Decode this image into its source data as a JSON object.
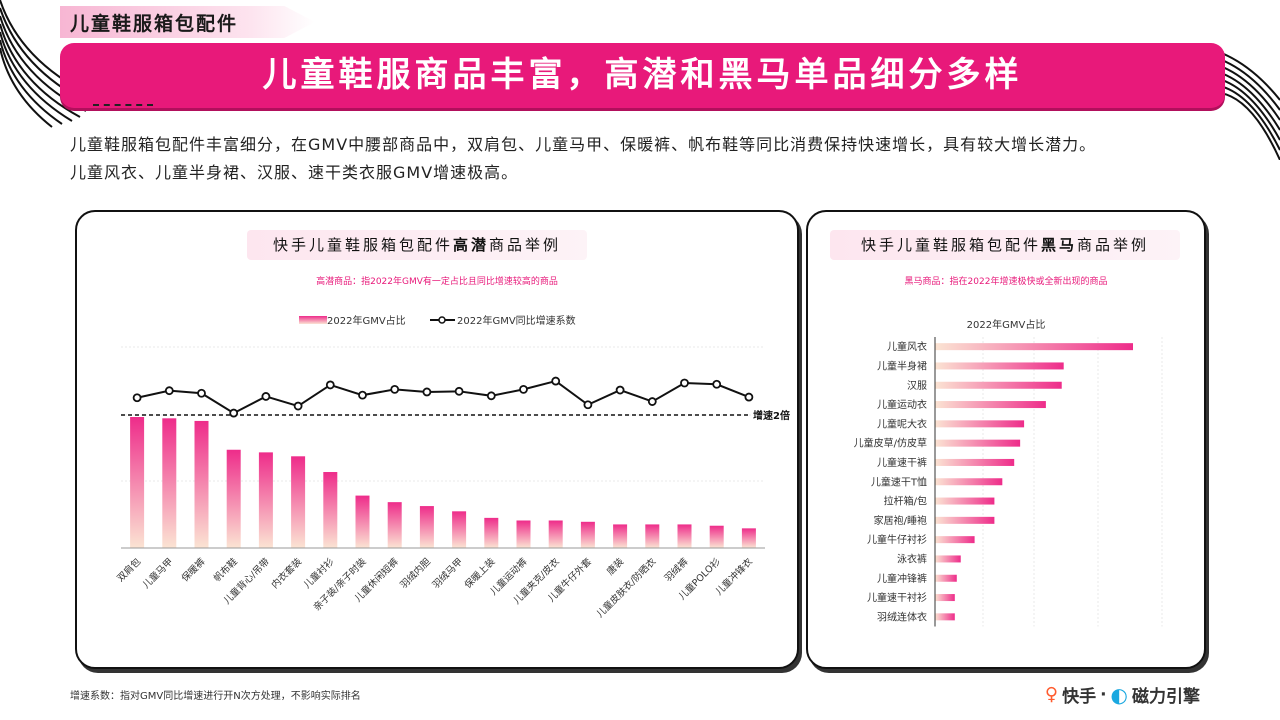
{
  "section_tag": "儿童鞋服箱包配件",
  "banner_title": "儿童鞋服商品丰富，高潜和黑马单品细分多样",
  "intro": [
    "儿童鞋服箱包配件丰富细分，在GMV中腰部商品中，双肩包、儿童马甲、保暖裤、帆布鞋等同比消费保持快速增长，具有较大增长潜力。",
    "儿童风衣、儿童半身裙、汉服、速干类衣服GMV增速极高。"
  ],
  "left_panel": {
    "title_prefix": "快手儿童鞋服箱包配件",
    "title_bold": "高潜",
    "title_suffix": "商品举例",
    "subtitle": "高潜商品：指2022年GMV有一定占比且同比增速较高的商品"
  },
  "right_panel": {
    "title_prefix": "快手儿童鞋服箱包配件",
    "title_bold": "黑马",
    "title_suffix": "商品举例",
    "subtitle": "黑马商品：指在2022年增速极快或全新出现的商品"
  },
  "chart_data": [
    {
      "type": "bar",
      "legend": [
        "2022年GMV占比",
        "2022年GMV同比增速系数"
      ],
      "legend_position": "top",
      "grid": true,
      "reference_line_label": "增速2倍",
      "categories": [
        "双肩包",
        "儿童马甲",
        "保暖裤",
        "帆布鞋",
        "儿童背心/吊带",
        "内衣套装",
        "儿童衬衫",
        "亲子装/亲子时装",
        "儿童休闲短裤",
        "羽绒内胆",
        "羽绒马甲",
        "保暖上装",
        "儿童运动裤",
        "儿童夹克/皮衣",
        "儿童牛仔外套",
        "唐装",
        "儿童皮肤衣/防晒衣",
        "羽绒裤",
        "儿童POLO衫",
        "儿童冲锋衣"
      ],
      "series": [
        {
          "name": "2022年GMV占比",
          "type": "bar",
          "values": [
            100,
            99,
            97,
            75,
            73,
            70,
            58,
            40,
            35,
            32,
            28,
            23,
            21,
            21,
            20,
            18,
            18,
            18,
            17,
            15
          ]
        },
        {
          "name": "2022年GMV同比增速系数",
          "type": "line",
          "values": [
            2.27,
            2.38,
            2.34,
            2.03,
            2.29,
            2.14,
            2.47,
            2.31,
            2.4,
            2.36,
            2.37,
            2.3,
            2.4,
            2.53,
            2.16,
            2.39,
            2.21,
            2.5,
            2.48,
            2.28
          ]
        }
      ]
    },
    {
      "type": "bar",
      "orientation": "horizontal",
      "title": "2022年GMV占比",
      "grid": true,
      "categories": [
        "儿童风衣",
        "儿童半身裙",
        "汉服",
        "儿童运动衣",
        "儿童呢大衣",
        "儿童皮草/仿皮草",
        "儿童速干裤",
        "儿童速干T恤",
        "拉杆箱/包",
        "家居袍/睡袍",
        "儿童牛仔衬衫",
        "泳衣裤",
        "儿童冲锋裤",
        "儿童速干衬衫",
        "羽绒连体衣"
      ],
      "values": [
        100,
        65,
        64,
        56,
        45,
        43,
        40,
        34,
        30,
        30,
        20,
        13,
        11,
        10,
        10
      ]
    }
  ],
  "footnote": "增速系数：指对GMV同比增速进行开N次方处理，不影响实际排名",
  "logo": {
    "kuaishou": "快手",
    "separator": "·",
    "cili": "磁力引擎"
  },
  "colors": {
    "accent": "#e8197a",
    "bar_top": "#ee2c8a",
    "bar_bottom": "#fbe4d3"
  }
}
